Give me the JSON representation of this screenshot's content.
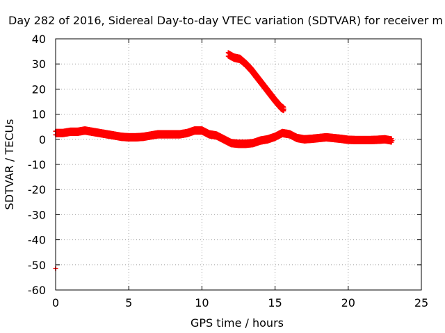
{
  "chart_data": {
    "type": "scatter",
    "title": "Day 282 of 2016, Sidereal Day-to-day VTEC variation (SDTVAR) for receiver m",
    "xlabel": "GPS time / hours",
    "ylabel": "SDTVAR / TECUs",
    "xlim": [
      0,
      25
    ],
    "ylim": [
      -60,
      40
    ],
    "xticks": [
      "0",
      "5",
      "10",
      "15",
      "20",
      "25"
    ],
    "yticks": [
      "40",
      "30",
      "20",
      "10",
      "0",
      "-10",
      "-20",
      "-30",
      "-40",
      "-50",
      "-60"
    ],
    "grid": true,
    "marker": "+",
    "color": "#ff0000",
    "series": [
      {
        "x": [
          0.0,
          0.5,
          1.0,
          1.5,
          2.0,
          2.5,
          3.0,
          3.5,
          4.0,
          4.5,
          5.0,
          5.5,
          6.0,
          6.5,
          7.0,
          7.5,
          8.0,
          8.5,
          9.0,
          9.5,
          10.0,
          10.5,
          11.0,
          11.5,
          12.0,
          12.5,
          13.0,
          13.5,
          14.0,
          14.5,
          15.0,
          15.5,
          16.0,
          16.5,
          17.0,
          17.5,
          18.0,
          18.5,
          19.0,
          19.5,
          20.0,
          20.5,
          21.0,
          21.5,
          22.0,
          22.5,
          23.0
        ],
        "y": [
          2.5,
          2.5,
          3.0,
          3.0,
          3.5,
          3.0,
          2.5,
          2.0,
          1.5,
          1.0,
          0.8,
          0.8,
          1.0,
          1.5,
          2.0,
          2.0,
          2.0,
          2.0,
          2.5,
          3.5,
          3.5,
          2.0,
          1.5,
          0.0,
          -1.5,
          -1.8,
          -1.8,
          -1.5,
          -0.5,
          0.0,
          1.0,
          2.5,
          2.0,
          0.5,
          0.0,
          0.2,
          0.5,
          0.8,
          0.5,
          0.2,
          -0.2,
          -0.3,
          -0.3,
          -0.3,
          -0.2,
          0.0,
          -0.5
        ]
      },
      {
        "x": [
          11.8,
          12.2,
          12.6,
          13.0,
          13.4,
          13.8,
          14.2,
          14.6,
          15.0,
          15.4,
          15.6
        ],
        "y": [
          33.8,
          32.5,
          32.0,
          30.0,
          27.5,
          24.5,
          21.5,
          18.5,
          15.5,
          12.8,
          12.0
        ]
      },
      {
        "x": [
          0.0
        ],
        "y": [
          -51.5
        ]
      }
    ]
  }
}
